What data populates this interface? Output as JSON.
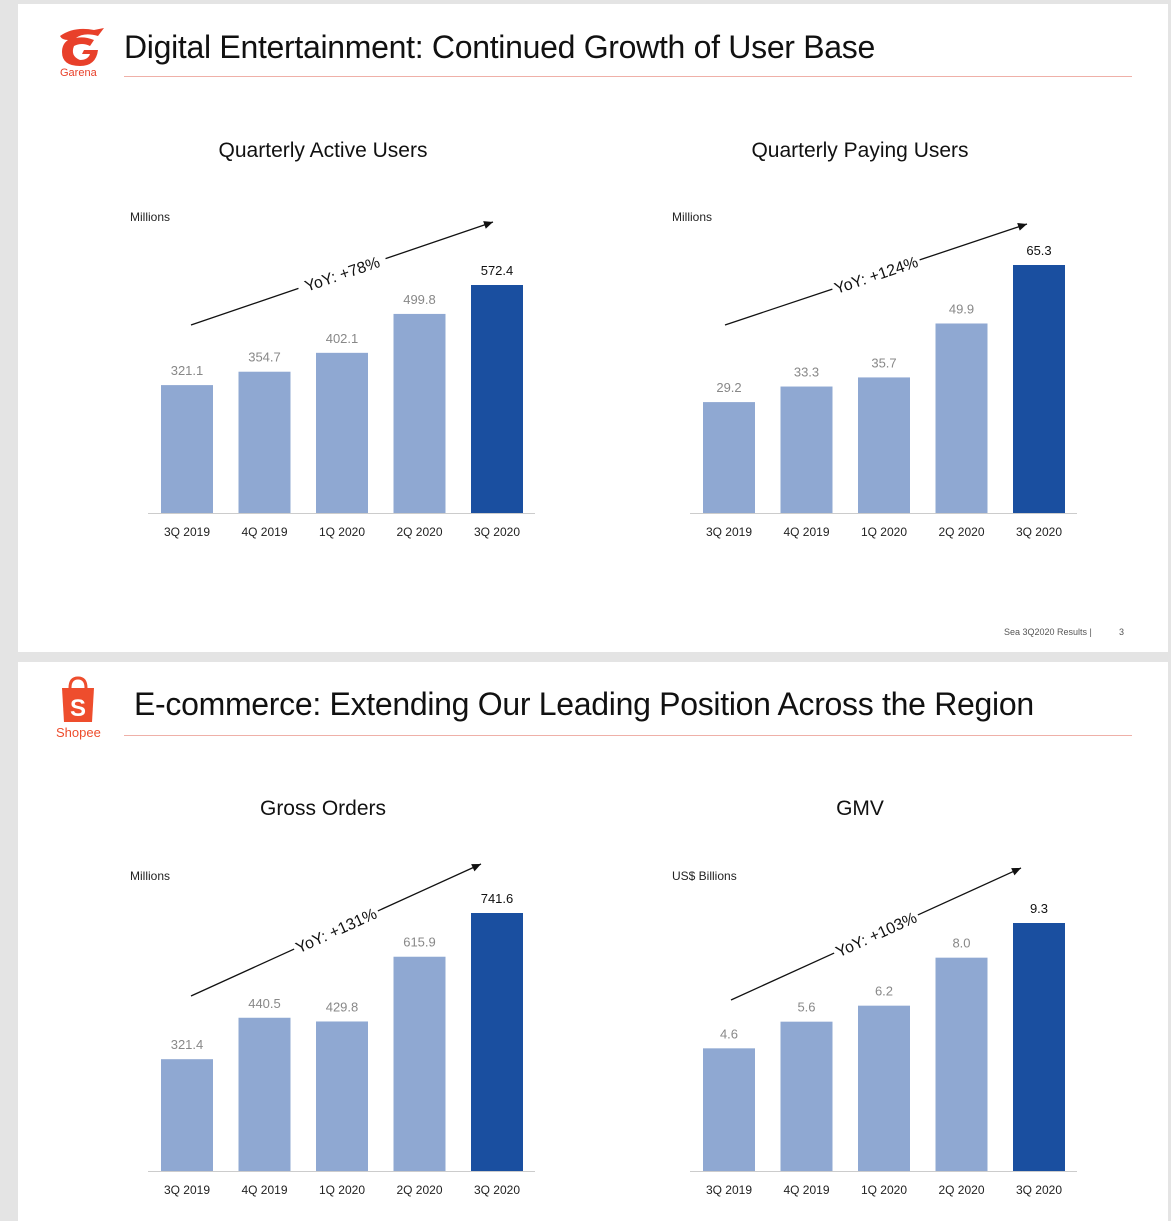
{
  "colors": {
    "bar_light": "#8fa8d2",
    "bar_dark": "#1a4fa0",
    "brand_red": "#e8402a",
    "shopee_orange": "#ee4d2d",
    "value_grey": "#888888",
    "value_dark": "#111111"
  },
  "slide1": {
    "logo_icon": "garena-logo-icon",
    "logo_label": "Garena",
    "title": "Digital Entertainment: Continued Growth of User Base",
    "footer": "Sea 3Q2020 Results |",
    "page_number": "3"
  },
  "slide2": {
    "logo_icon": "shopee-bag-icon",
    "logo_letter": "S",
    "logo_label": "Shopee",
    "title": "E-commerce: Extending Our Leading Position Across the Region"
  },
  "chart_data": [
    {
      "type": "bar",
      "title": "Quarterly Active Users",
      "ylabel": "Millions",
      "categories": [
        "3Q 2019",
        "4Q 2019",
        "1Q 2020",
        "2Q 2020",
        "3Q 2020"
      ],
      "values": [
        321.1,
        354.7,
        402.1,
        499.8,
        572.4
      ],
      "value_labels": [
        "321.1",
        "354.7",
        "402.1",
        "499.8",
        "572.4"
      ],
      "highlight_last": true,
      "annotation": "YoY: +78%",
      "ylim": [
        0,
        600
      ]
    },
    {
      "type": "bar",
      "title": "Quarterly Paying Users",
      "ylabel": "Millions",
      "categories": [
        "3Q 2019",
        "4Q 2019",
        "1Q 2020",
        "2Q 2020",
        "3Q 2020"
      ],
      "values": [
        29.2,
        33.3,
        35.7,
        49.9,
        65.3
      ],
      "value_labels": [
        "29.2",
        "33.3",
        "35.7",
        "49.9",
        "65.3"
      ],
      "highlight_last": true,
      "annotation": "YoY: +124%",
      "ylim": [
        0,
        65.3
      ]
    },
    {
      "type": "bar",
      "title": "Gross Orders",
      "ylabel": "Millions",
      "categories": [
        "3Q 2019",
        "4Q 2019",
        "1Q 2020",
        "2Q 2020",
        "3Q 2020"
      ],
      "values": [
        321.4,
        440.5,
        429.8,
        615.9,
        741.6
      ],
      "value_labels": [
        "321.4",
        "440.5",
        "429.8",
        "615.9",
        "741.6"
      ],
      "highlight_last": true,
      "annotation": "YoY: +131%",
      "ylim": [
        0,
        800
      ]
    },
    {
      "type": "bar",
      "title": "GMV",
      "ylabel": "US$ Billions",
      "categories": [
        "3Q 2019",
        "4Q 2019",
        "1Q 2020",
        "2Q 2020",
        "3Q 2020"
      ],
      "values": [
        4.6,
        5.6,
        6.2,
        8.0,
        9.3
      ],
      "value_labels": [
        "4.6",
        "5.6",
        "6.2",
        "8.0",
        "9.3"
      ],
      "highlight_last": true,
      "annotation": "YoY: +103%",
      "ylim": [
        0,
        9.3
      ]
    }
  ]
}
